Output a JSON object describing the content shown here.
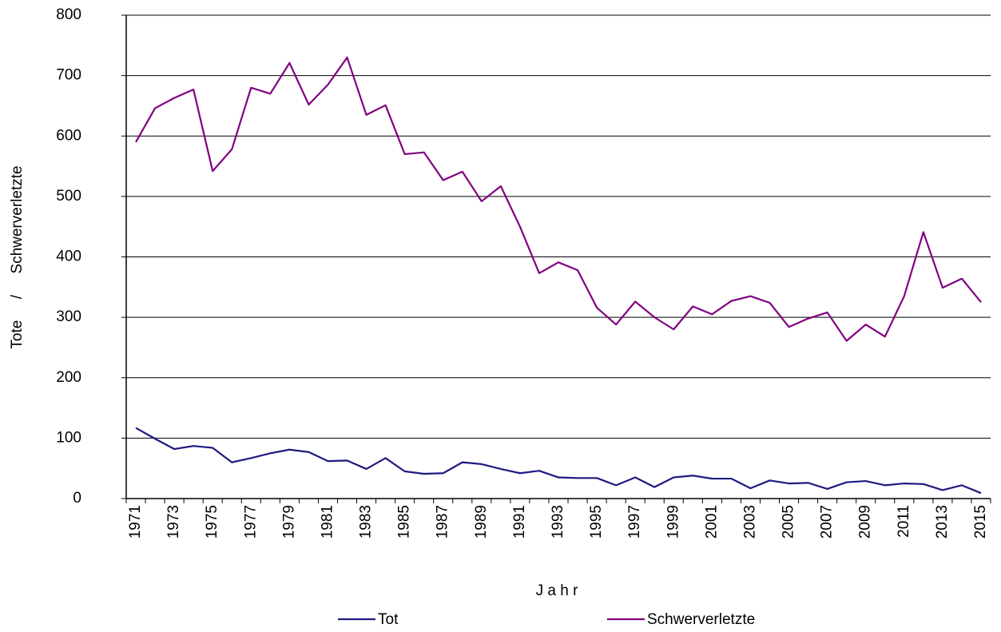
{
  "chart_data": {
    "type": "line",
    "y_label": "Tote     /     Schwerverletzte",
    "x_label": "J a h r",
    "categories": [
      "1971",
      null,
      "1973",
      null,
      "1975",
      null,
      "1977",
      null,
      "1979",
      null,
      "1981",
      null,
      "1983",
      null,
      "1985",
      null,
      "1987",
      null,
      "1989",
      null,
      "1991",
      null,
      "1993",
      null,
      "1995",
      null,
      "1997",
      null,
      "1999",
      null,
      "2001",
      null,
      "2003",
      null,
      "2005",
      null,
      "2007",
      null,
      "2009",
      null,
      "2011",
      null,
      "2013",
      null,
      "2015"
    ],
    "series": [
      {
        "name": "Tot",
        "color": "#1f1a80",
        "values": [
          117,
          99,
          82,
          87,
          84,
          60,
          67,
          75,
          81,
          77,
          62,
          63,
          49,
          67,
          45,
          41,
          42,
          60,
          57,
          49,
          42,
          46,
          35,
          34,
          34,
          22,
          35,
          19,
          35,
          38,
          33,
          33,
          17,
          30,
          25,
          26,
          16,
          27,
          29,
          22,
          25,
          24,
          14,
          22,
          9
        ]
      },
      {
        "name": "Schwerverletzte",
        "color": "#800080",
        "values": [
          590,
          646,
          663,
          677,
          542,
          578,
          680,
          670,
          721,
          652,
          685,
          730,
          635,
          651,
          570,
          573,
          527,
          541,
          492,
          517,
          450,
          373,
          391,
          378,
          316,
          288,
          326,
          300,
          280,
          318,
          305,
          327,
          335,
          324,
          284,
          298,
          308,
          261,
          288,
          268,
          335,
          441,
          349,
          364,
          325
        ]
      }
    ],
    "ylim": [
      0,
      800
    ],
    "yticks": [
      0,
      100,
      200,
      300,
      400,
      500,
      600,
      700,
      800
    ],
    "grid": true
  }
}
